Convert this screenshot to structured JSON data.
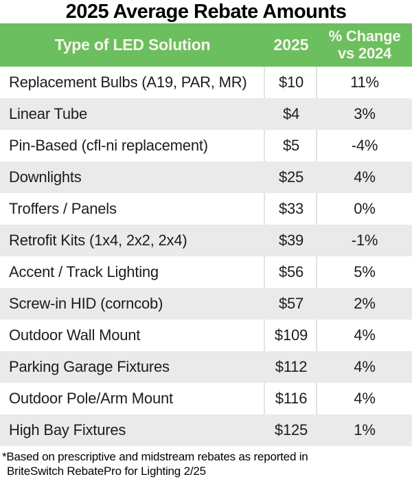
{
  "title": "2025 Average Rebate Amounts",
  "colors": {
    "header_bg": "#6cbf5e",
    "header_text": "#f7f6ec",
    "alt_row_bg": "#eaeaea",
    "separator": "#e2e2e2",
    "row_text": "#1c1c1c"
  },
  "table": {
    "columns": {
      "type_label": "Type of LED Solution",
      "year_label": "2025",
      "change_label_line1": "% Change",
      "change_label_line2": "vs 2024"
    },
    "rows": [
      {
        "type": "Replacement Bulbs (A19, PAR, MR)",
        "amount": "$10",
        "change": "11%"
      },
      {
        "type": "Linear Tube",
        "amount": "$4",
        "change": "3%"
      },
      {
        "type": "Pin-Based (cfl-ni replacement)",
        "amount": "$5",
        "change": "-4%"
      },
      {
        "type": "Downlights",
        "amount": "$25",
        "change": "4%"
      },
      {
        "type": "Troffers / Panels",
        "amount": "$33",
        "change": "0%"
      },
      {
        "type": "Retrofit Kits (1x4, 2x2, 2x4)",
        "amount": "$39",
        "change": "-1%"
      },
      {
        "type": "Accent / Track Lighting",
        "amount": "$56",
        "change": "5%"
      },
      {
        "type": "Screw-in HID (corncob)",
        "amount": "$57",
        "change": "2%"
      },
      {
        "type": "Outdoor Wall Mount",
        "amount": "$109",
        "change": "4%"
      },
      {
        "type": "Parking Garage Fixtures",
        "amount": "$112",
        "change": "4%"
      },
      {
        "type": "Outdoor Pole/Arm Mount",
        "amount": "$116",
        "change": "4%"
      },
      {
        "type": "High Bay Fixtures",
        "amount": "$125",
        "change": "1%"
      }
    ]
  },
  "footnote": {
    "line1": "*Based on prescriptive and midstream rebates as reported in",
    "line2": "BriteSwitch RebatePro for Lighting 2/25"
  }
}
